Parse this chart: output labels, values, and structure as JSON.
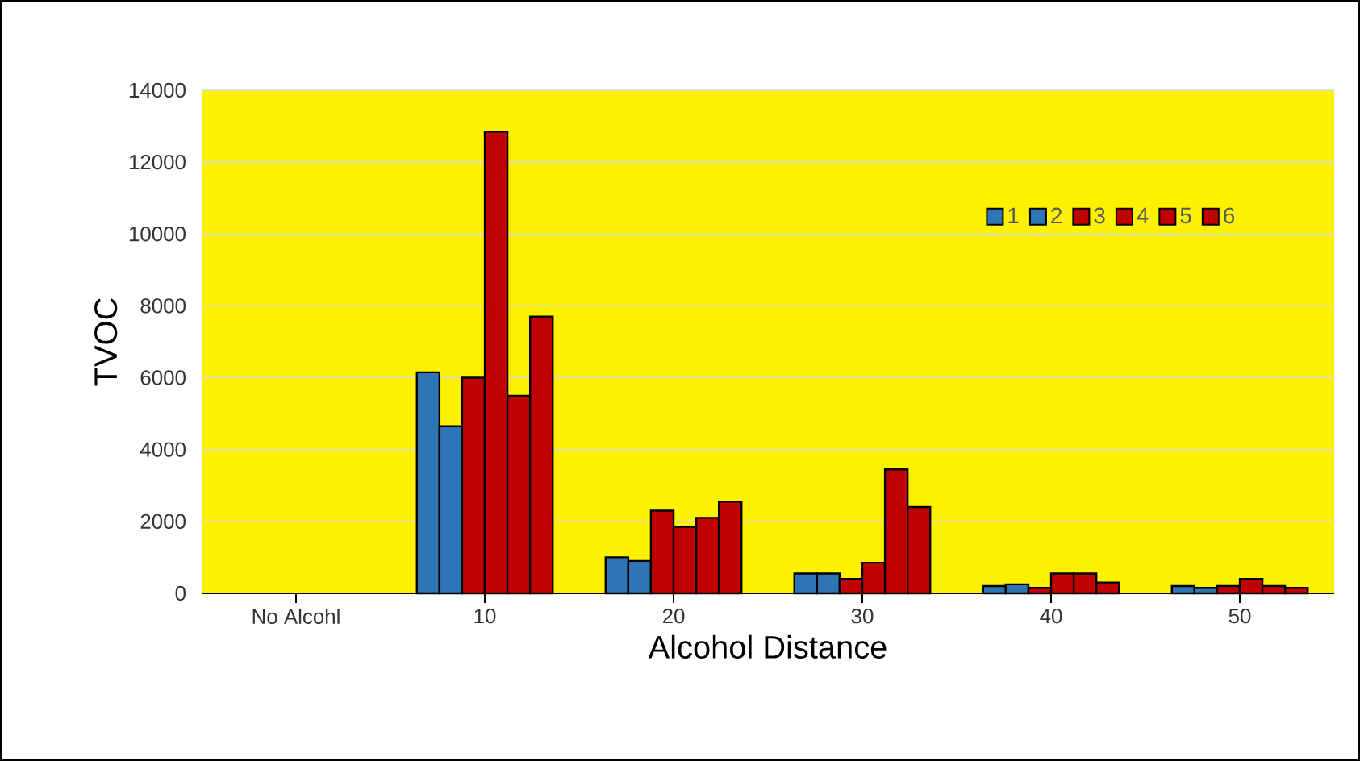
{
  "chart_data": {
    "type": "bar",
    "xlabel": "Alcohol Distance",
    "ylabel": "TVOC",
    "categories": [
      "No Alcohl",
      "10",
      "20",
      "30",
      "40",
      "50"
    ],
    "series": [
      {
        "name": "1",
        "color": "#2e75b6",
        "values": [
          null,
          6150,
          1000,
          550,
          200,
          200
        ]
      },
      {
        "name": "2",
        "color": "#2e75b6",
        "values": [
          null,
          4650,
          900,
          550,
          250,
          150
        ]
      },
      {
        "name": "3",
        "color": "#c00000",
        "values": [
          null,
          6000,
          2300,
          400,
          150,
          200
        ]
      },
      {
        "name": "4",
        "color": "#c00000",
        "values": [
          null,
          12850,
          1850,
          850,
          550,
          400
        ]
      },
      {
        "name": "5",
        "color": "#c00000",
        "values": [
          null,
          5500,
          2100,
          3450,
          550,
          200
        ]
      },
      {
        "name": "6",
        "color": "#c00000",
        "values": [
          null,
          7700,
          2550,
          2400,
          300,
          150
        ]
      }
    ],
    "ylim": [
      0,
      14000
    ],
    "yticks": [
      0,
      2000,
      4000,
      6000,
      8000,
      10000,
      12000,
      14000
    ],
    "grid": "y",
    "legend": "top right"
  }
}
